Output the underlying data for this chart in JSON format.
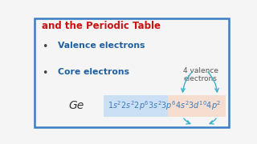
{
  "bg_color": "#f5f5f5",
  "border_color": "#3a7cc7",
  "title_text": "and the Periodic Table",
  "title_color": "#cc1111",
  "bullet1_text": "Valence electrons",
  "bullet2_text": "Core electrons",
  "bullet_color": "#2060a0",
  "ge_label": "Ge",
  "ge_color": "#333333",
  "config_text_color": "#3a7abf",
  "valence_label": "4 valence\nelectrons",
  "valence_color": "#555555",
  "arrow_color": "#3ab0cc",
  "box_left_color": "#cce0f5",
  "box_right_color": "#f5ddd0"
}
